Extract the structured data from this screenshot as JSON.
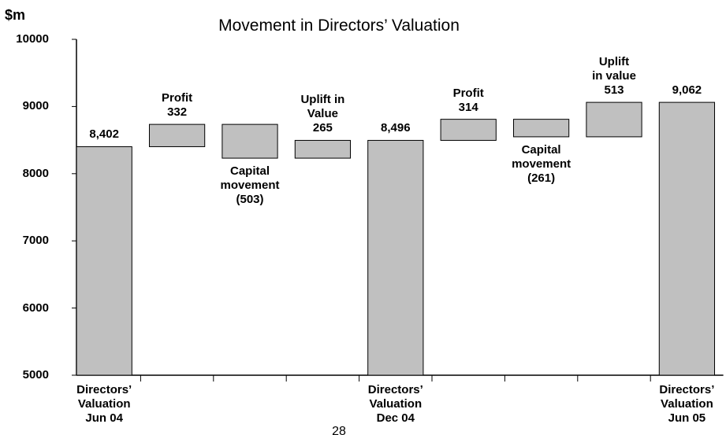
{
  "chart_data": {
    "type": "waterfall",
    "title": "Movement in Directors’ Valuation",
    "y_label": "$m",
    "footer": "28",
    "categories": [
      "Directors’\nValuation\nJun 04",
      null,
      null,
      null,
      "Directors’\nValuation\nDec 04",
      null,
      null,
      null,
      "Directors’\nValuation\nJun 05"
    ],
    "measures": [
      "total",
      "relative",
      "relative",
      "relative",
      "total",
      "relative",
      "relative",
      "relative",
      "total"
    ],
    "names": [
      null,
      "Profit",
      "Capital\nmovement",
      "Uplift in\nValue",
      null,
      "Profit",
      "Capital\nmovement",
      "Uplift\nin value",
      null
    ],
    "values": [
      8402,
      332,
      -503,
      265,
      8496,
      314,
      -261,
      513,
      9062
    ],
    "value_labels": [
      "8,402",
      "332",
      "(503)",
      "265",
      "8,496",
      "314",
      "(261)",
      "513",
      "9,062"
    ],
    "color": "#c0c0c0",
    "ylim": [
      5000,
      10000
    ],
    "yticks": [
      5000,
      6000,
      7000,
      8000,
      9000,
      10000
    ]
  }
}
